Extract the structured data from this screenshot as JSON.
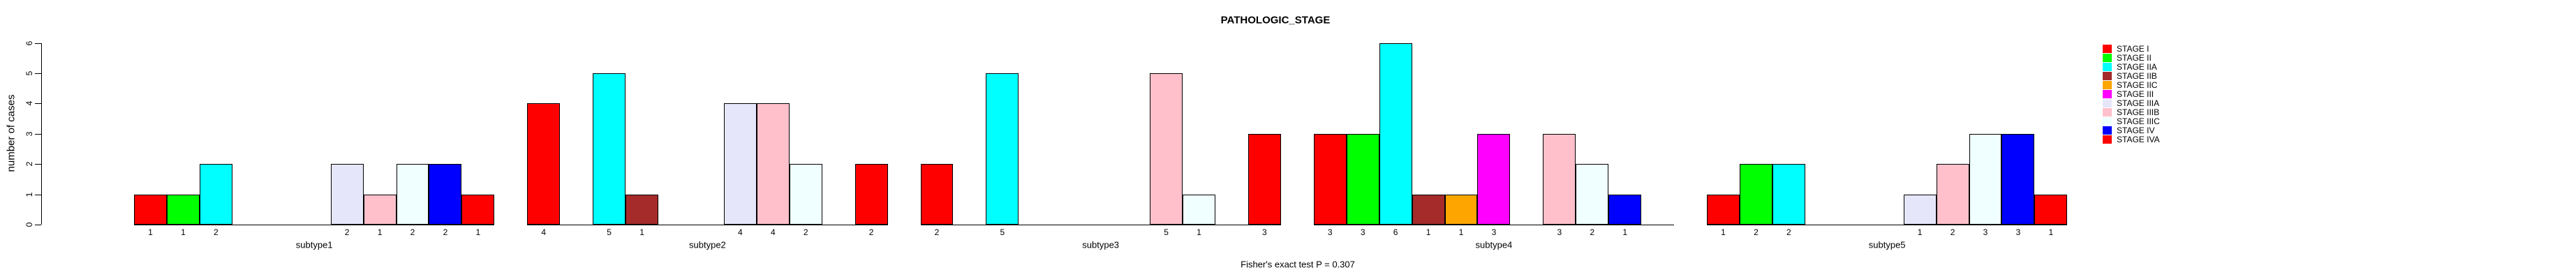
{
  "title": "PATHOLOGIC_STAGE",
  "footer": "Fisher's exact test P = 0.307",
  "y_axis": {
    "label": "number of cases",
    "ticks": [
      0,
      1,
      2,
      3,
      4,
      5,
      6
    ],
    "range": [
      0,
      6
    ]
  },
  "chart_data": {
    "type": "bar",
    "title": "PATHOLOGIC_STAGE",
    "xlabel": "",
    "ylabel": "number of cases",
    "ylim": [
      0,
      6
    ],
    "grid": false,
    "legend_position": "right",
    "annotation": "Fisher's exact test P = 0.307",
    "bar_value_labels": true,
    "categories": [
      "subtype1",
      "subtype2",
      "subtype3",
      "subtype4",
      "subtype5"
    ],
    "series": [
      {
        "name": "STAGE I",
        "color": "#FF0000",
        "values": [
          1,
          4,
          2,
          3,
          1
        ]
      },
      {
        "name": "STAGE II",
        "color": "#00FF00",
        "values": [
          1,
          0,
          0,
          3,
          2
        ]
      },
      {
        "name": "STAGE IIA",
        "color": "#00FFFF",
        "values": [
          2,
          5,
          5,
          6,
          2
        ]
      },
      {
        "name": "STAGE IIB",
        "color": "#A52A2A",
        "values": [
          0,
          1,
          0,
          1,
          0
        ]
      },
      {
        "name": "STAGE IIC",
        "color": "#FFA500",
        "values": [
          0,
          0,
          0,
          1,
          0
        ]
      },
      {
        "name": "STAGE III",
        "color": "#FF00FF",
        "values": [
          0,
          0,
          0,
          3,
          0
        ]
      },
      {
        "name": "STAGE IIIA",
        "color": "#E6E6FA",
        "values": [
          2,
          4,
          0,
          0,
          1
        ]
      },
      {
        "name": "STAGE IIIB",
        "color": "#FFC0CB",
        "values": [
          1,
          4,
          5,
          3,
          2
        ]
      },
      {
        "name": "STAGE IIIC",
        "color": "#F0FFFF",
        "values": [
          2,
          2,
          1,
          2,
          3
        ]
      },
      {
        "name": "STAGE IV",
        "color": "#0000FF",
        "values": [
          2,
          0,
          0,
          1,
          3
        ]
      },
      {
        "name": "STAGE IVA",
        "color": "#FF0000",
        "values": [
          1,
          2,
          3,
          0,
          1
        ]
      }
    ]
  }
}
